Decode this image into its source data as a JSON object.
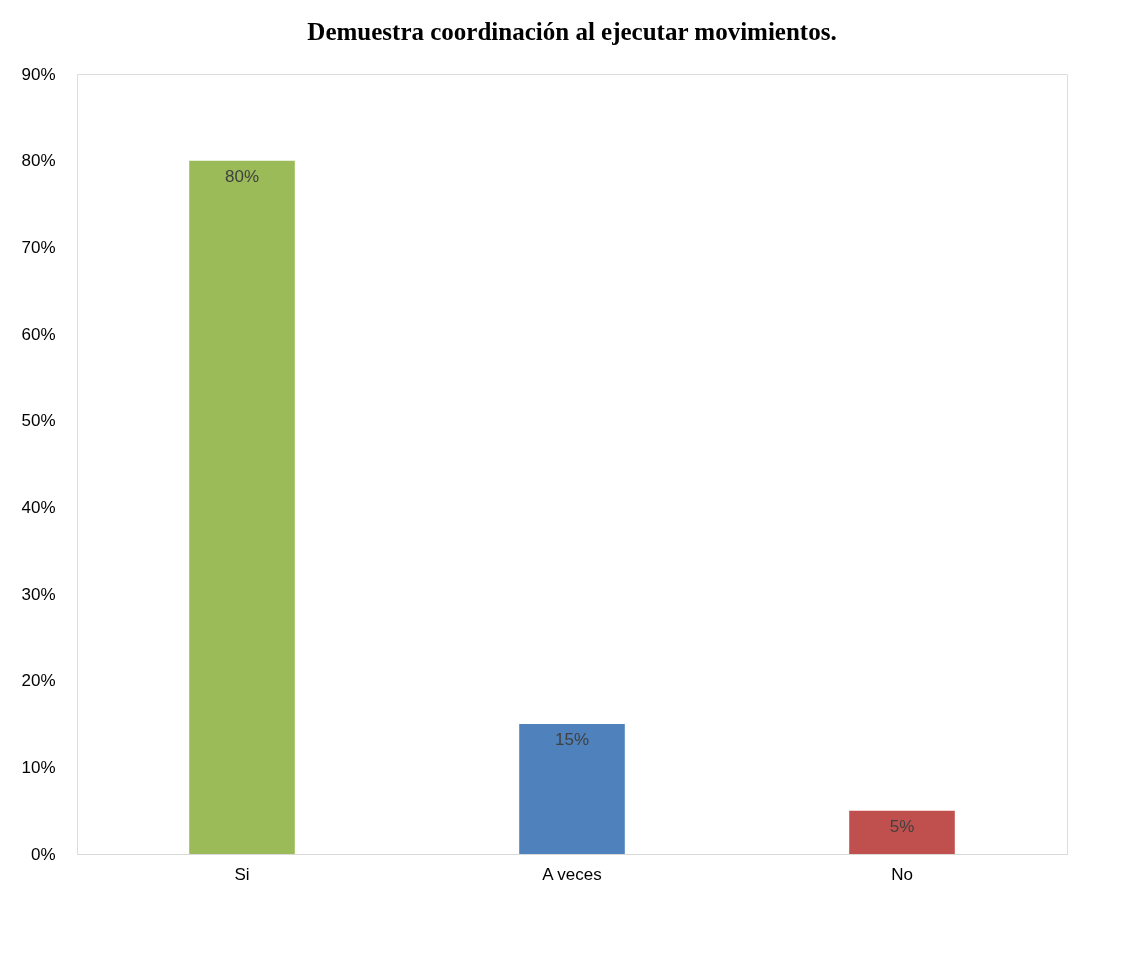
{
  "chart_data": {
    "type": "bar",
    "title": "Demuestra coordinación al ejecutar movimientos.",
    "categories": [
      "Si",
      "A veces",
      "No"
    ],
    "values": [
      80,
      15,
      5
    ],
    "colors": [
      "#9bbb59",
      "#4f81bd",
      "#c0504d"
    ],
    "value_labels": [
      "80%",
      "15%",
      "5%"
    ],
    "ylim": [
      0,
      90
    ],
    "yticks": [
      {
        "value": 0,
        "label": "0%"
      },
      {
        "value": 10,
        "label": "10%"
      },
      {
        "value": 20,
        "label": "20%"
      },
      {
        "value": 30,
        "label": "30%"
      },
      {
        "value": 40,
        "label": "40%"
      },
      {
        "value": 50,
        "label": "50%"
      },
      {
        "value": 60,
        "label": "60%"
      },
      {
        "value": 70,
        "label": "70%"
      },
      {
        "value": 80,
        "label": "80%"
      },
      {
        "value": 90,
        "label": "90%"
      }
    ],
    "grid": false
  }
}
